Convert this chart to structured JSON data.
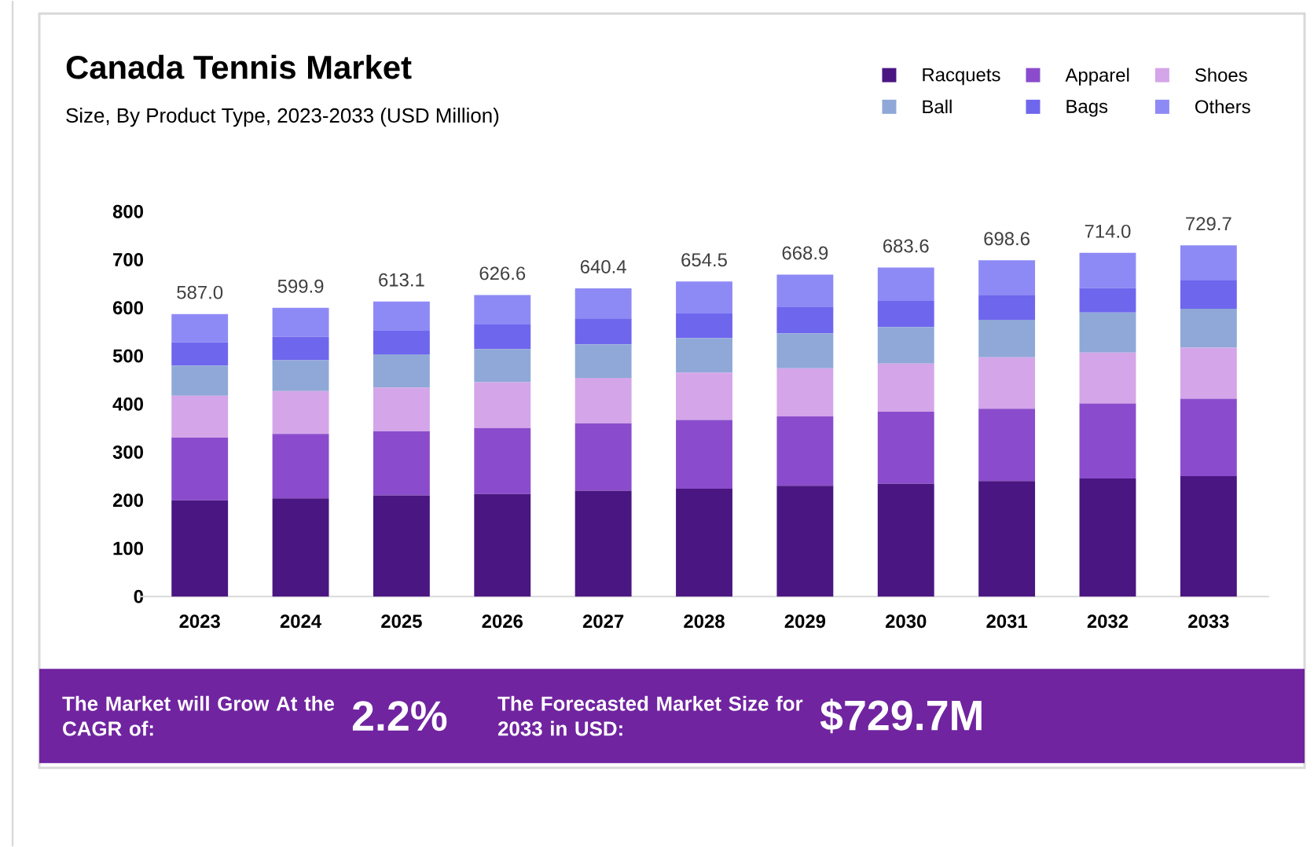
{
  "chart_data": {
    "type": "bar",
    "stacked": true,
    "title": "Canada Tennis Market",
    "subtitle": "Size, By Product Type, 2023-2033 (USD Million)",
    "categories": [
      "2023",
      "2024",
      "2025",
      "2026",
      "2027",
      "2028",
      "2029",
      "2030",
      "2031",
      "2032",
      "2033"
    ],
    "series": [
      {
        "name": "Racquets",
        "color": "#4a1682",
        "values": [
          200,
          204,
          210,
          213,
          220,
          224,
          230,
          234,
          240,
          245,
          250
        ]
      },
      {
        "name": "Apparel",
        "color": "#8a4ccc",
        "values": [
          130,
          134,
          133,
          137,
          140,
          143,
          144,
          150,
          150,
          156,
          161
        ]
      },
      {
        "name": "Shoes",
        "color": "#d4a5e8",
        "values": [
          87,
          89,
          91,
          95,
          94,
          98,
          100,
          100,
          107,
          106,
          106
        ]
      },
      {
        "name": "Ball",
        "color": "#8fa8d8",
        "values": [
          63,
          64,
          69,
          69,
          70,
          72,
          73,
          76,
          78,
          83,
          81
        ]
      },
      {
        "name": "Bags",
        "color": "#6f66ee",
        "values": [
          48,
          49,
          49,
          51,
          54,
          51,
          54,
          54,
          52,
          51,
          60
        ]
      },
      {
        "name": "Others",
        "color": "#8e8af5",
        "values": [
          59.0,
          59.9,
          61.1,
          61.6,
          62.4,
          66.5,
          67.9,
          69.6,
          71.6,
          73.0,
          71.7
        ]
      }
    ],
    "totals": [
      "587.0",
      "599.9",
      "613.1",
      "626.6",
      "640.4",
      "654.5",
      "668.9",
      "683.6",
      "698.6",
      "714.0",
      "729.7"
    ],
    "ylim": [
      0,
      800
    ],
    "yticks": [
      0,
      100,
      200,
      300,
      400,
      500,
      600,
      700,
      800
    ],
    "legend": "top right",
    "grid": false,
    "annotations": [
      "The Market will Grow At the CAGR of:",
      "2.2%",
      "The Forecasted Market Size for 2033 in USD:",
      "$729.7M"
    ]
  }
}
